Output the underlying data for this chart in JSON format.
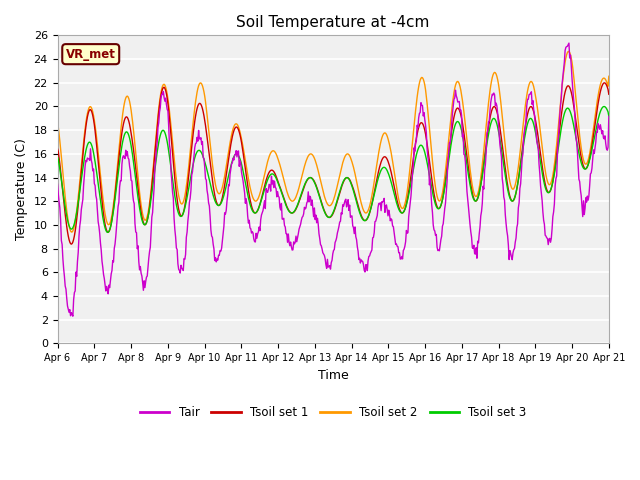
{
  "title": "Soil Temperature at -4cm",
  "xlabel": "Time",
  "ylabel": "Temperature (C)",
  "ylim": [
    0,
    26
  ],
  "yticks": [
    0,
    2,
    4,
    6,
    8,
    10,
    12,
    14,
    16,
    18,
    20,
    22,
    24,
    26
  ],
  "xtick_labels": [
    "Apr 6",
    "Apr 7",
    "Apr 8",
    "Apr 9",
    "Apr 10",
    "Apr 11",
    "Apr 12",
    "Apr 13",
    "Apr 14",
    "Apr 15",
    "Apr 16",
    "Apr 17",
    "Apr 18",
    "Apr 19",
    "Apr 20",
    "Apr 21"
  ],
  "colors": {
    "Tair": "#cc00cc",
    "Tsoil1": "#cc0000",
    "Tsoil2": "#ff9900",
    "Tsoil3": "#00cc00"
  },
  "plot_bg": "#f0f0f0",
  "grid_color": "#ffffff",
  "legend_label": "VR_met",
  "legend_facecolor": "#ffffcc",
  "legend_edgecolor": "#660000",
  "n_days": 15,
  "pts_per_day": 48
}
